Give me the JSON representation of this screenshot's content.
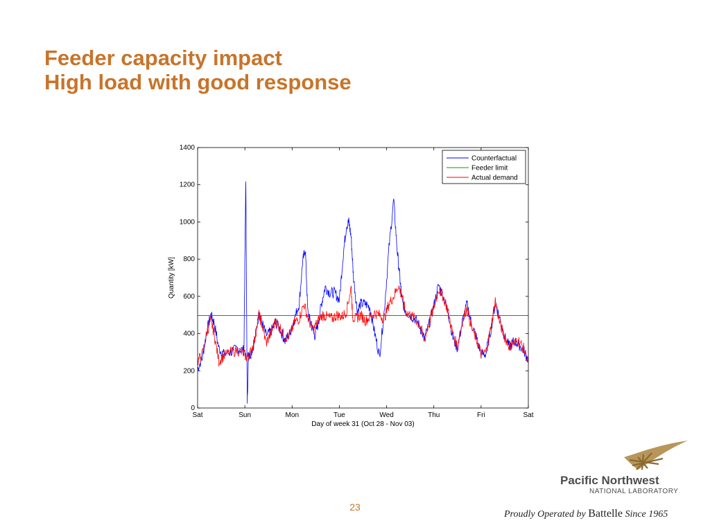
{
  "slide": {
    "title_line1": "Feeder capacity impact",
    "title_line2": "High load with good response",
    "page_number": "23",
    "title_color": "#c8742a"
  },
  "logo": {
    "name": "Pacific Northwest",
    "subtitle": "NATIONAL LABORATORY",
    "operated_prefix": "Proudly Operated by",
    "operated_brand": "Battelle",
    "operated_suffix": "Since 1965",
    "icon": "pnnl-swoosh-icon"
  },
  "chart_data": {
    "type": "line",
    "title": "",
    "xlabel": "Day of week 31 (Oct 28 - Nov 03)",
    "ylabel": "Quantity [kW]",
    "ylim": [
      0,
      1400
    ],
    "yticks": [
      0,
      200,
      400,
      600,
      800,
      1000,
      1200,
      1400
    ],
    "xlim": [
      0,
      7
    ],
    "xtick_labels": [
      "Sat",
      "Sun",
      "Mon",
      "Tue",
      "Wed",
      "Thu",
      "Fri",
      "Sat"
    ],
    "legend_position": "top-right",
    "grid": false,
    "series": [
      {
        "name": "Counterfactual",
        "color": "#0000ff",
        "x": [
          0,
          0.1,
          0.2,
          0.28,
          0.35,
          0.45,
          0.55,
          0.7,
          0.85,
          0.98,
          1.02,
          1.05,
          1.08,
          1.12,
          1.2,
          1.3,
          1.35,
          1.45,
          1.55,
          1.65,
          1.75,
          1.85,
          1.95,
          2.05,
          2.15,
          2.22,
          2.28,
          2.33,
          2.4,
          2.48,
          2.55,
          2.62,
          2.7,
          2.8,
          2.9,
          3.0,
          3.08,
          3.15,
          3.2,
          3.25,
          3.3,
          3.38,
          3.45,
          3.55,
          3.65,
          3.75,
          3.85,
          3.95,
          4.05,
          4.15,
          4.22,
          4.28,
          4.33,
          4.4,
          4.5,
          4.6,
          4.7,
          4.8,
          4.9,
          5.0,
          5.1,
          5.2,
          5.3,
          5.4,
          5.5,
          5.6,
          5.7,
          5.8,
          5.9,
          6.0,
          6.1,
          6.2,
          6.3,
          6.4,
          6.5,
          6.6,
          6.7,
          6.8,
          6.9,
          7.0
        ],
        "y": [
          210,
          270,
          420,
          500,
          460,
          320,
          290,
          300,
          320,
          310,
          1240,
          40,
          300,
          290,
          350,
          510,
          470,
          390,
          410,
          460,
          420,
          360,
          400,
          480,
          560,
          780,
          860,
          520,
          450,
          390,
          450,
          560,
          650,
          620,
          620,
          580,
          820,
          980,
          1000,
          920,
          700,
          520,
          560,
          560,
          540,
          400,
          280,
          520,
          860,
          1120,
          860,
          700,
          570,
          520,
          500,
          480,
          440,
          370,
          450,
          550,
          660,
          600,
          520,
          380,
          320,
          460,
          560,
          450,
          380,
          290,
          290,
          410,
          560,
          480,
          380,
          330,
          360,
          340,
          310,
          260
        ]
      },
      {
        "name": "Feeder limit",
        "color": "#00a000",
        "x": [
          0,
          7
        ],
        "y": [
          497,
          497
        ]
      },
      {
        "name": "Actual demand",
        "color": "#ff0000",
        "x": [
          0,
          0.1,
          0.2,
          0.28,
          0.35,
          0.45,
          0.55,
          0.7,
          0.85,
          0.98,
          1.05,
          1.12,
          1.2,
          1.3,
          1.35,
          1.45,
          1.55,
          1.65,
          1.75,
          1.85,
          1.95,
          2.05,
          2.15,
          2.25,
          2.35,
          2.45,
          2.55,
          2.65,
          2.75,
          2.85,
          2.95,
          3.05,
          3.15,
          3.25,
          3.28,
          3.35,
          3.45,
          3.55,
          3.65,
          3.75,
          3.85,
          3.95,
          4.05,
          4.15,
          4.25,
          4.32,
          4.4,
          4.5,
          4.6,
          4.7,
          4.8,
          4.9,
          5.0,
          5.1,
          5.2,
          5.3,
          5.4,
          5.5,
          5.6,
          5.7,
          5.8,
          5.9,
          6.0,
          6.1,
          6.2,
          6.3,
          6.4,
          6.5,
          6.6,
          6.7,
          6.8,
          6.9,
          7.0
        ],
        "y": [
          250,
          290,
          410,
          470,
          400,
          250,
          280,
          300,
          310,
          290,
          270,
          300,
          360,
          500,
          460,
          350,
          400,
          470,
          430,
          380,
          390,
          460,
          480,
          560,
          470,
          420,
          470,
          500,
          490,
          480,
          500,
          490,
          520,
          650,
          490,
          480,
          500,
          470,
          490,
          510,
          500,
          480,
          560,
          600,
          660,
          600,
          520,
          500,
          480,
          450,
          360,
          460,
          540,
          640,
          600,
          520,
          400,
          330,
          460,
          540,
          430,
          370,
          290,
          300,
          420,
          580,
          450,
          380,
          330,
          350,
          360,
          320,
          240
        ]
      }
    ]
  }
}
